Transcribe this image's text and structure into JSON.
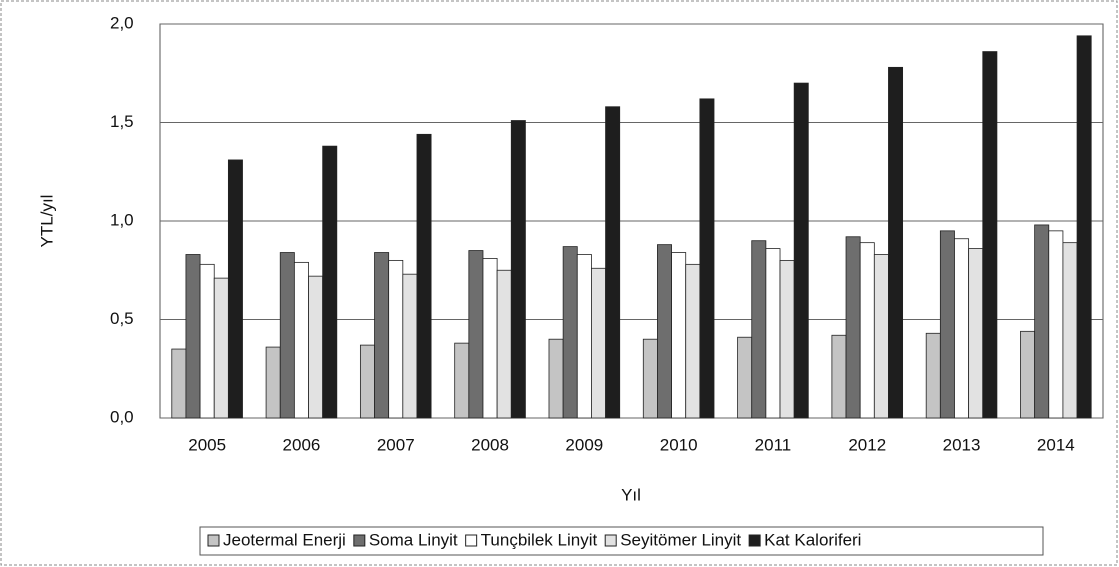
{
  "chart_data": {
    "type": "bar",
    "categories": [
      "2005",
      "2006",
      "2007",
      "2008",
      "2009",
      "2010",
      "2011",
      "2012",
      "2013",
      "2014"
    ],
    "series": [
      {
        "name": "Jeotermal Enerji",
        "color": "#c4c4c4",
        "values": [
          0.35,
          0.36,
          0.37,
          0.38,
          0.4,
          0.4,
          0.41,
          0.42,
          0.43,
          0.44
        ]
      },
      {
        "name": "Soma Linyit",
        "color": "#6e6e6e",
        "values": [
          0.83,
          0.84,
          0.84,
          0.85,
          0.87,
          0.88,
          0.9,
          0.92,
          0.95,
          0.98
        ]
      },
      {
        "name": "Tunçbilek Linyit",
        "color": "#ffffff",
        "values": [
          0.78,
          0.79,
          0.8,
          0.81,
          0.83,
          0.84,
          0.86,
          0.89,
          0.91,
          0.95
        ]
      },
      {
        "name": "Seyitömer Linyit",
        "color": "#e2e2e2",
        "values": [
          0.71,
          0.72,
          0.73,
          0.75,
          0.76,
          0.78,
          0.8,
          0.83,
          0.86,
          0.89
        ]
      },
      {
        "name": "Kat Kaloriferi",
        "color": "#1e1e1e",
        "values": [
          1.31,
          1.38,
          1.44,
          1.51,
          1.58,
          1.62,
          1.7,
          1.78,
          1.86,
          1.94
        ]
      }
    ],
    "y_label": "YTL/yıl",
    "x_label": "Yıl",
    "ylim": [
      0,
      2
    ],
    "yticks": [
      {
        "value": 0,
        "label": "0,0"
      },
      {
        "value": 0.5,
        "label": "0,5"
      },
      {
        "value": 1,
        "label": "1,0"
      },
      {
        "value": 1.5,
        "label": "1,5"
      },
      {
        "value": 2,
        "label": "2,0"
      }
    ],
    "grid": true,
    "legend": "bottom"
  }
}
